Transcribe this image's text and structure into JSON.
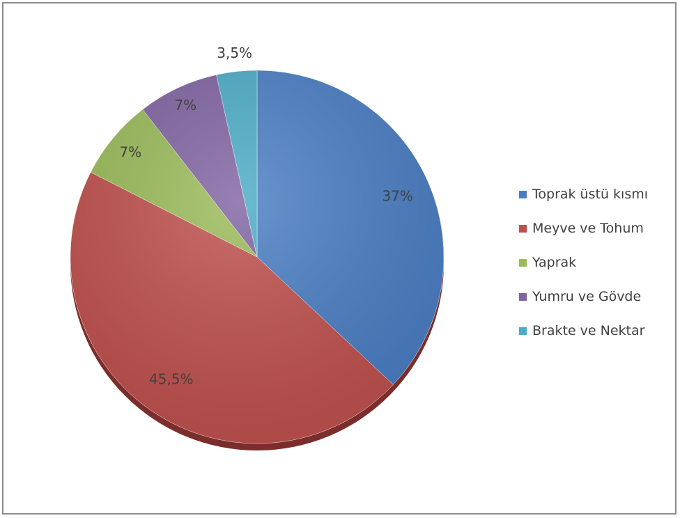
{
  "chart_data": {
    "type": "pie",
    "categories": [
      "Toprak üstü kısmı",
      "Meyve ve Tohum",
      "Yaprak",
      "Yumru ve Gövde",
      "Brakte ve Nektar"
    ],
    "values": [
      37,
      45.5,
      7,
      7,
      3.5
    ],
    "data_labels": [
      "37%",
      "45,5%",
      "7%",
      "7%",
      "3,5%"
    ],
    "colors": [
      "#4a7ec4",
      "#c0504d",
      "#9bbb59",
      "#8064a2",
      "#4bacc6"
    ],
    "legend_position": "right"
  }
}
